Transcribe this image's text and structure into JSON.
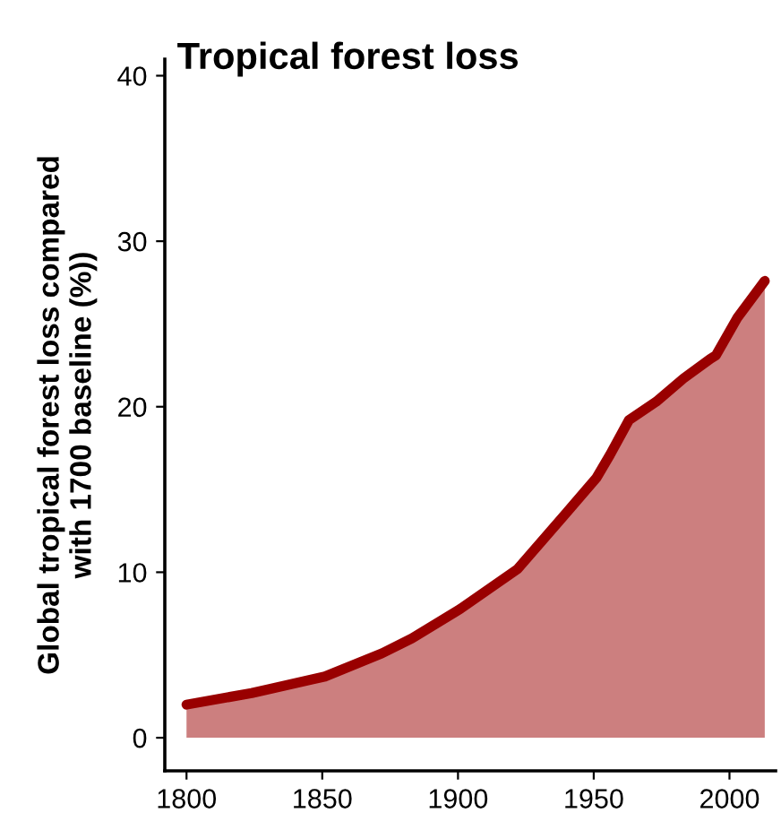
{
  "chart_data": {
    "type": "area",
    "title": "Tropical forest loss",
    "ylabel": "Global tropical forest loss compared\nwith 1700 baseline (%))",
    "x": [
      1800,
      1824,
      1851,
      1872,
      1883,
      1901,
      1922,
      1940,
      1951,
      1956,
      1963,
      1973,
      1983,
      1993,
      1995,
      2003,
      2013
    ],
    "series": [
      {
        "color": "#990000",
        "values": [
          2.0,
          2.7,
          3.7,
          5.1,
          6.0,
          7.8,
          10.2,
          13.6,
          15.7,
          17.1,
          19.2,
          20.3,
          21.7,
          22.9,
          23.1,
          25.4,
          27.6
        ]
      }
    ],
    "xlim": [
      1792,
      2017
    ],
    "ylim": [
      -2,
      41
    ],
    "xticks": [
      1800,
      1850,
      1900,
      1950,
      2000
    ],
    "yticks": [
      0,
      10,
      20,
      30,
      40
    ],
    "grid": false,
    "legend": false
  }
}
